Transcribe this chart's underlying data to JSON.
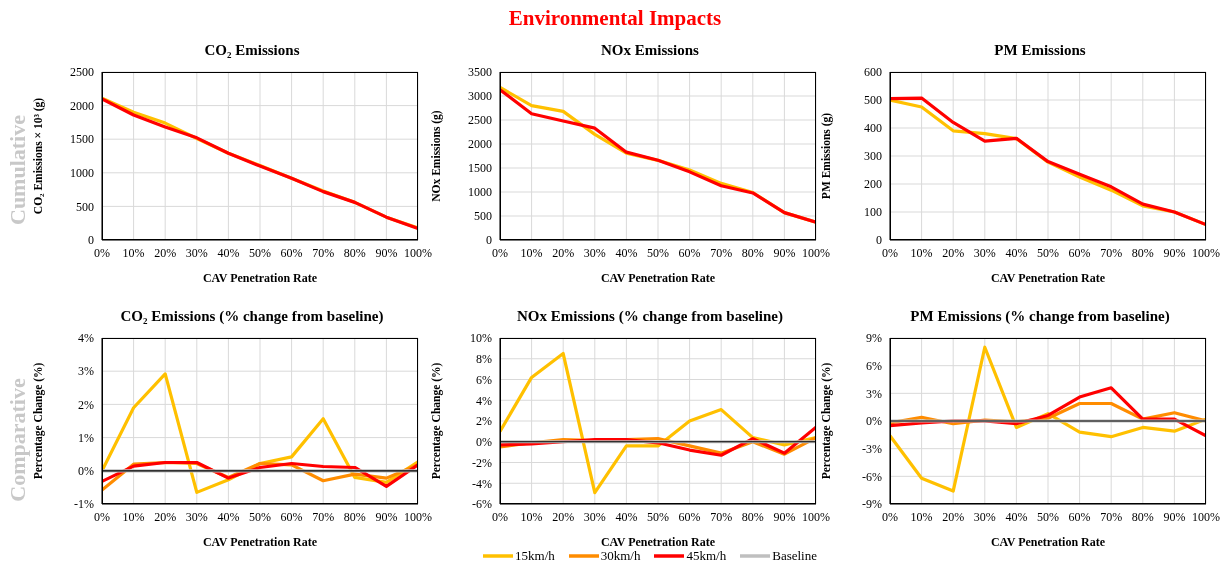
{
  "chart_data": [
    {
      "type": "other",
      "title": "Environmental Impacts",
      "annotations": [
        "Cumulative",
        "Comparative"
      ]
    },
    {
      "type": "line",
      "title": "CO₂ Emissions",
      "xlabel": "CAV Penetration Rate",
      "ylabel": "CO₂ Emissions × 10³ (g)",
      "categories": [
        "0%",
        "10%",
        "20%",
        "30%",
        "40%",
        "50%",
        "60%",
        "70%",
        "80%",
        "90%",
        "100%"
      ],
      "ylim": [
        0,
        2500
      ],
      "yticks": [
        0,
        500,
        1000,
        1500,
        2000,
        2500
      ],
      "grid": true,
      "legend": false,
      "marker": "none",
      "line_style": "solid",
      "series": [
        {
          "color": "#ffc000",
          "values": [
            2110,
            1900,
            1740,
            1510,
            1290,
            1110,
            920,
            730,
            560,
            340,
            180
          ]
        },
        {
          "color": "#ff0000",
          "values": [
            2100,
            1860,
            1680,
            1520,
            1290,
            1100,
            920,
            720,
            560,
            340,
            170
          ]
        }
      ]
    },
    {
      "type": "line",
      "title": "NOx Emissions",
      "xlabel": "CAV Penetration Rate",
      "ylabel": "NOx Emissions (g)",
      "categories": [
        "0%",
        "10%",
        "20%",
        "30%",
        "40%",
        "50%",
        "60%",
        "70%",
        "80%",
        "90%",
        "100%"
      ],
      "ylim": [
        0,
        3500
      ],
      "yticks": [
        0,
        500,
        1000,
        1500,
        2000,
        2500,
        3000,
        3500
      ],
      "grid": true,
      "legend": false,
      "marker": "none",
      "line_style": "solid",
      "series": [
        {
          "color": "#ffc000",
          "values": [
            3180,
            2800,
            2680,
            2200,
            1810,
            1660,
            1460,
            1180,
            990,
            570,
            370
          ]
        },
        {
          "color": "#ff0000",
          "values": [
            3130,
            2630,
            2480,
            2330,
            1830,
            1660,
            1420,
            1130,
            980,
            570,
            370
          ]
        }
      ]
    },
    {
      "type": "line",
      "title": "PM Emissions",
      "xlabel": "CAV Penetration Rate",
      "ylabel": "PM Emissions (g)",
      "categories": [
        "0%",
        "10%",
        "20%",
        "30%",
        "40%",
        "50%",
        "60%",
        "70%",
        "80%",
        "90%",
        "100%"
      ],
      "ylim": [
        0,
        600
      ],
      "yticks": [
        0,
        100,
        200,
        300,
        400,
        500,
        600
      ],
      "grid": true,
      "legend": false,
      "marker": "none",
      "line_style": "solid",
      "series": [
        {
          "color": "#ffc000",
          "values": [
            500,
            475,
            390,
            380,
            362,
            278,
            225,
            178,
            122,
            100,
            55
          ]
        },
        {
          "color": "#ff0000",
          "values": [
            505,
            507,
            420,
            353,
            363,
            280,
            235,
            190,
            128,
            100,
            55
          ]
        }
      ]
    },
    {
      "type": "line",
      "title": "CO₂ Emissions (% change from baseline)",
      "xlabel": "CAV Penetration Rate",
      "ylabel": "Percentage Change (%)",
      "categories": [
        "0%",
        "10%",
        "20%",
        "30%",
        "40%",
        "50%",
        "60%",
        "70%",
        "80%",
        "90%",
        "100%"
      ],
      "ylim": [
        -1,
        4
      ],
      "yticks": [
        {
          "value": -1,
          "label": "-1%"
        },
        {
          "value": 0,
          "label": "0%"
        },
        {
          "value": 1,
          "label": "1%"
        },
        {
          "value": 2,
          "label": "2%"
        },
        {
          "value": 3,
          "label": "3%"
        },
        {
          "value": 4,
          "label": "4%"
        }
      ],
      "grid": true,
      "legend": false,
      "marker": "none",
      "line_style": "solid",
      "series": [
        {
          "color": "#ffc000",
          "values": [
            0.0,
            1.9,
            2.92,
            -0.65,
            -0.27,
            0.22,
            0.42,
            1.57,
            -0.2,
            -0.35,
            0.27
          ]
        },
        {
          "color": "#ff8c00",
          "values": [
            -0.58,
            0.2,
            0.25,
            0.22,
            -0.2,
            0.22,
            0.18,
            -0.3,
            -0.1,
            -0.22,
            0.18
          ]
        },
        {
          "color": "#ff0000",
          "values": [
            -0.32,
            0.14,
            0.25,
            0.25,
            -0.22,
            0.1,
            0.22,
            0.13,
            0.1,
            -0.47,
            0.18
          ]
        },
        {
          "color": "#bfbfbf",
          "values": [
            0,
            0,
            0,
            0,
            0,
            0,
            0,
            0,
            0,
            0,
            0
          ]
        }
      ]
    },
    {
      "type": "line",
      "title": "NOx Emissions (% change from baseline)",
      "xlabel": "CAV Penetration Rate",
      "ylabel": "Percentage Change (%)",
      "categories": [
        "0%",
        "10%",
        "20%",
        "30%",
        "40%",
        "50%",
        "60%",
        "70%",
        "80%",
        "90%",
        "100%"
      ],
      "ylim": [
        -6,
        10
      ],
      "yticks": [
        {
          "value": -6,
          "label": "-6%"
        },
        {
          "value": -4,
          "label": "-4%"
        },
        {
          "value": -2,
          "label": "-2%"
        },
        {
          "value": 0,
          "label": "0%"
        },
        {
          "value": 2,
          "label": "2%"
        },
        {
          "value": 4,
          "label": "4%"
        },
        {
          "value": 6,
          "label": "6%"
        },
        {
          "value": 8,
          "label": "8%"
        },
        {
          "value": 10,
          "label": "10%"
        }
      ],
      "grid": true,
      "legend": "bottom",
      "marker": "none",
      "line_style": "solid",
      "series": [
        {
          "name": "15km/h",
          "color": "#ffc000",
          "values": [
            1.0,
            6.2,
            8.5,
            -4.9,
            -0.4,
            -0.4,
            2.0,
            3.1,
            0.4,
            -0.3,
            0.4
          ]
        },
        {
          "name": "30km/h",
          "color": "#ff8c00",
          "values": [
            -0.5,
            -0.1,
            0.2,
            0.1,
            0.2,
            0.3,
            -0.4,
            -1.1,
            0.0,
            -1.2,
            0.4
          ]
        },
        {
          "name": "45km/h",
          "color": "#ff0000",
          "values": [
            -0.3,
            -0.2,
            0.0,
            0.2,
            0.2,
            -0.1,
            -0.8,
            -1.3,
            0.3,
            -1.1,
            1.4
          ]
        },
        {
          "name": "Baseline",
          "color": "#bfbfbf",
          "values": [
            0,
            0,
            0,
            0,
            0,
            0,
            0,
            0,
            0,
            0,
            0
          ]
        }
      ]
    },
    {
      "type": "line",
      "title": "PM Emissions (% change from baseline)",
      "xlabel": "CAV Penetration Rate",
      "ylabel": "Percentage Change (%)",
      "categories": [
        "0%",
        "10%",
        "20%",
        "30%",
        "40%",
        "50%",
        "60%",
        "70%",
        "80%",
        "90%",
        "100%"
      ],
      "ylim": [
        -9,
        9
      ],
      "yticks": [
        {
          "value": -9,
          "label": "-9%"
        },
        {
          "value": -6,
          "label": "-6%"
        },
        {
          "value": -3,
          "label": "-3%"
        },
        {
          "value": 0,
          "label": "0%"
        },
        {
          "value": 3,
          "label": "3%"
        },
        {
          "value": 6,
          "label": "6%"
        },
        {
          "value": 9,
          "label": "9%"
        }
      ],
      "grid": true,
      "legend": false,
      "marker": "none",
      "line_style": "solid",
      "series": [
        {
          "color": "#ffc000",
          "values": [
            -1.6,
            -6.2,
            -7.6,
            8.0,
            -0.7,
            0.8,
            -1.2,
            -1.7,
            -0.7,
            -1.1,
            0.2
          ]
        },
        {
          "color": "#ff8c00",
          "values": [
            -0.2,
            0.4,
            -0.3,
            0.1,
            -0.1,
            0.3,
            1.9,
            1.9,
            0.2,
            0.9,
            0.0
          ]
        },
        {
          "color": "#ff0000",
          "values": [
            -0.5,
            -0.2,
            0.0,
            0.0,
            -0.3,
            0.6,
            2.6,
            3.6,
            0.2,
            0.2,
            -1.6
          ]
        },
        {
          "color": "#bfbfbf",
          "values": [
            0,
            0,
            0,
            0,
            0,
            0,
            0,
            0,
            0,
            0,
            0
          ]
        }
      ]
    }
  ]
}
